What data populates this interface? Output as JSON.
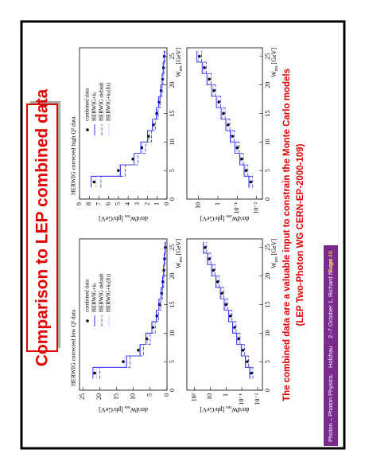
{
  "header": {
    "title": "Comparison to LEP combined data"
  },
  "charts": [
    {
      "type": "step",
      "title": "HERWIG corrected low Q² data",
      "xlabel": {
        "main": "W",
        "sub": "res",
        "unit": " [GeV]"
      },
      "ylabel": {
        "main": "dσ/dW",
        "sub": "res",
        "unit": " [pb/GeV]"
      },
      "xlim": [
        0,
        26.5
      ],
      "xticks": [
        0,
        5,
        10,
        15,
        20,
        25
      ],
      "ylim": [
        0,
        26
      ],
      "yticks": [
        0,
        5,
        10,
        15,
        20,
        25
      ],
      "log_y": false,
      "legend": true,
      "x": [
        3,
        5,
        7,
        9,
        11,
        13,
        15,
        17,
        19,
        21,
        23,
        25
      ],
      "series": [
        {
          "name": "combined data",
          "color": "#000000",
          "style": "point",
          "values": [
            21.5,
            13,
            8.5,
            6,
            4.2,
            3,
            2.2,
            1.6,
            1.2,
            0.9,
            0.7,
            0.5
          ]
        },
        {
          "name": "HERWIG+kₜ",
          "color": "#0000ff",
          "style": "solid",
          "values": [
            22,
            12,
            8,
            6.3,
            4.5,
            3.2,
            2.4,
            1.8,
            1.3,
            1.0,
            0.8,
            0.6
          ]
        },
        {
          "name": "HERWIG default",
          "color": "#3333cc",
          "style": "dashed",
          "values": [
            20,
            11,
            7,
            5,
            3.5,
            2.5,
            1.8,
            1.3,
            1.0,
            0.8,
            0.6,
            0.45
          ]
        },
        {
          "name": "HERWIG+kₜ(fit)",
          "color": "#6666ff",
          "style": "dotted",
          "values": [
            21,
            12.5,
            8.2,
            5.8,
            4.1,
            2.9,
            2.1,
            1.5,
            1.1,
            0.85,
            0.65,
            0.5
          ]
        }
      ]
    },
    {
      "type": "step",
      "xlabel": {
        "main": "W",
        "sub": "res",
        "unit": " [GeV]"
      },
      "ylabel": {
        "main": "dσ/dW",
        "sub": "res",
        "unit": " [pb/GeV]"
      },
      "xlim": [
        0,
        26.5
      ],
      "xticks": [
        0,
        5,
        10,
        15,
        20,
        25
      ],
      "ylim": [
        0.005,
        300
      ],
      "yticks": [
        {
          "value": 100,
          "label": "10²"
        },
        10,
        1,
        {
          "value": 0.1,
          "label": "10⁻¹"
        },
        {
          "value": 0.01,
          "label": "10⁻²"
        }
      ],
      "log_y": true,
      "x": [
        3,
        5,
        7,
        9,
        11,
        13,
        15,
        17,
        19,
        21,
        23,
        25
      ],
      "series": [
        {
          "color": "#000000",
          "style": "point",
          "values": [
            0.025,
            0.046,
            0.085,
            0.16,
            0.29,
            0.53,
            1,
            1.8,
            3.4,
            6.3,
            11.5,
            21
          ]
        },
        {
          "color": "#0000ff",
          "style": "solid",
          "values": [
            0.032,
            0.06,
            0.11,
            0.21,
            0.38,
            0.7,
            1.3,
            2.3,
            4.4,
            8.2,
            15,
            27
          ]
        },
        {
          "color": "#3333cc",
          "style": "dashed",
          "values": [
            0.02,
            0.037,
            0.068,
            0.13,
            0.23,
            0.42,
            0.8,
            1.4,
            2.7,
            5,
            9.2,
            17
          ]
        },
        {
          "color": "#6666ff",
          "style": "dotted",
          "values": [
            0.028,
            0.05,
            0.094,
            0.18,
            0.32,
            0.58,
            1.1,
            2,
            3.7,
            6.9,
            12.6,
            23
          ]
        }
      ]
    },
    {
      "type": "step",
      "title": "HERWIG corrected high Q² data",
      "xlabel": {
        "main": "W",
        "sub": "res",
        "unit": " [GeV]"
      },
      "ylabel": {
        "main": "dσ/dW",
        "sub": "res",
        "unit": " [pb/GeV]"
      },
      "xlim": [
        0,
        26.5
      ],
      "xticks": [
        0,
        5,
        10,
        15,
        20,
        25
      ],
      "ylim": [
        0,
        9
      ],
      "yticks": [
        0,
        1,
        2,
        3,
        4,
        5,
        6,
        7,
        8,
        9
      ],
      "log_y": false,
      "legend": true,
      "x": [
        3,
        5,
        7,
        9,
        11,
        13,
        15,
        17,
        19,
        21,
        23,
        25
      ],
      "series": [
        {
          "name": "combined data",
          "color": "#000000",
          "style": "point",
          "values": [
            7.5,
            5,
            3.5,
            2.6,
            1.9,
            1.4,
            1.05,
            0.8,
            0.6,
            0.45,
            0.35,
            0.28
          ]
        },
        {
          "name": "HERWIG+kₜ",
          "color": "#0000ff",
          "style": "solid",
          "values": [
            7.8,
            4.8,
            3.4,
            2.7,
            2.0,
            1.5,
            1.1,
            0.85,
            0.65,
            0.5,
            0.4,
            0.3
          ]
        },
        {
          "name": "HERWIG default",
          "color": "#3333cc",
          "style": "dashed",
          "values": [
            6.8,
            4.3,
            3.0,
            2.2,
            1.6,
            1.2,
            0.9,
            0.7,
            0.5,
            0.4,
            0.3,
            0.22
          ]
        },
        {
          "name": "HERWIG+kₜ(fit)",
          "color": "#6666ff",
          "style": "dotted",
          "values": [
            7.3,
            4.9,
            3.4,
            2.5,
            1.85,
            1.35,
            1.0,
            0.78,
            0.58,
            0.44,
            0.34,
            0.27
          ]
        }
      ]
    },
    {
      "type": "step",
      "xlabel": {
        "main": "W",
        "sub": "res",
        "unit": " [GeV]"
      },
      "ylabel": {
        "main": "dσ/dW",
        "sub": "res",
        "unit": " [pb/GeV]"
      },
      "xlim": [
        0,
        26.5
      ],
      "xticks": [
        0,
        5,
        10,
        15,
        20,
        25
      ],
      "ylim": [
        0.005,
        40
      ],
      "yticks": [
        10,
        1,
        {
          "value": 0.1,
          "label": "10⁻¹"
        },
        {
          "value": 0.01,
          "label": "10⁻²"
        }
      ],
      "log_y": true,
      "x": [
        3,
        5,
        7,
        9,
        11,
        13,
        15,
        17,
        19,
        21,
        23,
        25
      ],
      "series": [
        {
          "color": "#000000",
          "style": "point",
          "values": [
            0.02,
            0.035,
            0.06,
            0.1,
            0.18,
            0.3,
            0.52,
            0.9,
            1.6,
            2.8,
            5,
            9
          ]
        },
        {
          "color": "#0000ff",
          "style": "solid",
          "values": [
            0.025,
            0.044,
            0.075,
            0.13,
            0.23,
            0.39,
            0.68,
            1.2,
            2.1,
            3.7,
            6.5,
            12
          ]
        },
        {
          "color": "#3333cc",
          "style": "dashed",
          "values": [
            0.016,
            0.028,
            0.048,
            0.08,
            0.14,
            0.24,
            0.42,
            0.72,
            1.3,
            2.2,
            4,
            7
          ]
        },
        {
          "color": "#6666ff",
          "style": "dotted",
          "values": [
            0.022,
            0.038,
            0.066,
            0.11,
            0.2,
            0.33,
            0.57,
            1,
            1.75,
            3.1,
            5.5,
            10
          ]
        }
      ]
    }
  ],
  "conclusion": [
    "The combined data are a valuable input to constrain the Monte Carlo models",
    "(LEP Two-Photon WG CERN-EP-2000-109)"
  ],
  "footer": {
    "event": "Photon – Photon Physics.",
    "place": "Holzhau",
    "dates": "2.-7 October 1,",
    "author": "Richard Nisius",
    "page": "Page 48"
  }
}
